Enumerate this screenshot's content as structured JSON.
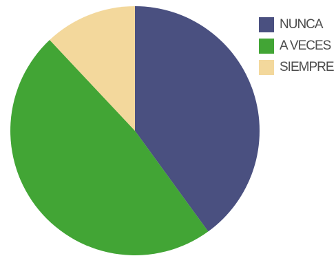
{
  "chart_data": {
    "type": "pie",
    "title": "",
    "categories": [
      "NUNCA",
      "A VECES",
      "SIEMPRE"
    ],
    "values": [
      40,
      48,
      12
    ],
    "colors": [
      "#4a5080",
      "#42a535",
      "#f3d89c"
    ],
    "start_angle_deg": 0,
    "direction": "clockwise",
    "legend": {
      "placement": "top-right",
      "entries": [
        "NUNCA",
        "A VECES",
        "SIEMPRE"
      ]
    }
  }
}
